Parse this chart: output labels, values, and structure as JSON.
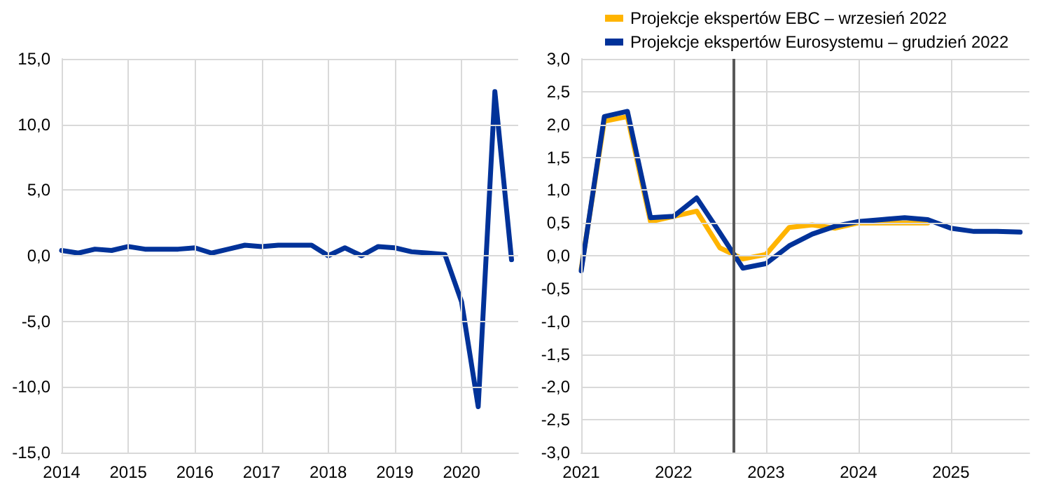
{
  "chart_data": [
    {
      "type": "line",
      "x": [
        2014,
        2014.25,
        2014.5,
        2014.75,
        2015,
        2015.25,
        2015.5,
        2015.75,
        2016,
        2016.25,
        2016.5,
        2016.75,
        2017,
        2017.25,
        2017.5,
        2017.75,
        2018,
        2018.25,
        2018.5,
        2018.75,
        2019,
        2019.25,
        2019.5,
        2019.75,
        2020,
        2020.25,
        2020.5,
        2020.75
      ],
      "series": [
        {
          "color": "#003299",
          "values": [
            0.4,
            0.2,
            0.5,
            0.4,
            0.7,
            0.5,
            0.5,
            0.5,
            0.6,
            0.2,
            0.5,
            0.8,
            0.7,
            0.8,
            0.8,
            0.8,
            0.0,
            0.6,
            0.0,
            0.7,
            0.6,
            0.3,
            0.2,
            0.1,
            -3.5,
            -11.5,
            12.5,
            -0.3
          ]
        }
      ],
      "xlim": [
        2014,
        2020.85
      ],
      "xticks": [
        2014,
        2015,
        2016,
        2017,
        2018,
        2019,
        2020
      ],
      "ylim": [
        -15,
        15
      ],
      "yticks": [
        {
          "value": -15,
          "label": "-15,0"
        },
        {
          "value": -10,
          "label": "-10,0"
        },
        {
          "value": -5,
          "label": "-5,0"
        },
        {
          "value": 0,
          "label": "0,0"
        },
        {
          "value": 5,
          "label": "5,0"
        },
        {
          "value": 10,
          "label": "10,0"
        },
        {
          "value": 15,
          "label": "15,0"
        }
      ],
      "grid": true,
      "legend": false,
      "marker": "none",
      "line_style": "solid"
    },
    {
      "type": "line",
      "x": [
        2021,
        2021.25,
        2021.5,
        2021.75,
        2022,
        2022.25,
        2022.5,
        2022.75,
        2023,
        2023.25,
        2023.5,
        2023.75,
        2024,
        2024.25,
        2024.5,
        2024.75,
        2025,
        2025.25,
        2025.5,
        2025.75
      ],
      "series": [
        {
          "name": "Projekcje ekspertów EBC – wrzesień 2022",
          "color": "#ffb400",
          "values": [
            -0.2,
            2.05,
            2.12,
            0.52,
            0.6,
            0.68,
            0.12,
            -0.05,
            0.02,
            0.43,
            0.47,
            0.42,
            0.5,
            0.5,
            0.5,
            0.5,
            null,
            null,
            null,
            null
          ]
        },
        {
          "name": "Projekcje ekspertów Eurosystemu – grudzień 2022",
          "color": "#003299",
          "values": [
            -0.23,
            2.12,
            2.2,
            0.58,
            0.6,
            0.88,
            0.35,
            -0.19,
            -0.12,
            0.15,
            0.33,
            0.45,
            0.52,
            0.55,
            0.58,
            0.55,
            0.42,
            0.37,
            0.37,
            0.36
          ]
        }
      ],
      "xlim": [
        2021,
        2025.85
      ],
      "xticks": [
        2021,
        2022,
        2023,
        2024,
        2025
      ],
      "ylim": [
        -3,
        3
      ],
      "yticks": [
        {
          "value": -3,
          "label": "-3,0"
        },
        {
          "value": -2.5,
          "label": "-2,5"
        },
        {
          "value": -2,
          "label": "-2,0"
        },
        {
          "value": -1.5,
          "label": "-1,5"
        },
        {
          "value": -1,
          "label": "-1,0"
        },
        {
          "value": -0.5,
          "label": "-0,5"
        },
        {
          "value": 0,
          "label": "0,0"
        },
        {
          "value": 0.5,
          "label": "0,5"
        },
        {
          "value": 1,
          "label": "1,0"
        },
        {
          "value": 1.5,
          "label": "1,5"
        },
        {
          "value": 2,
          "label": "2,0"
        },
        {
          "value": 2.5,
          "label": "2,5"
        },
        {
          "value": 3,
          "label": "3,0"
        }
      ],
      "ref_lines": [
        {
          "axis": "x",
          "value": 2022.65,
          "color": "#595959"
        }
      ],
      "grid": true,
      "legend": "top",
      "marker": "none",
      "line_style": "solid"
    }
  ]
}
